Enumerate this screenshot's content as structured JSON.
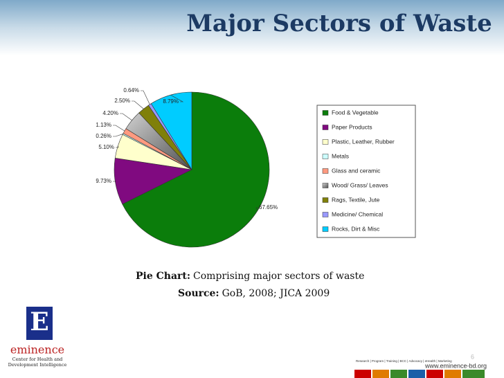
{
  "chart_data": {
    "type": "pie",
    "title": "Major Sectors of Waste",
    "categories": [
      "Food & Vegetable",
      "Paper Products",
      "Plastic, Leather, Rubber",
      "Metals",
      "Glass and ceramic",
      "Wood/ Grass/ Leaves",
      "Rags, Textile, Jute",
      "Medicine/ Chemical",
      "Rocks, Dirt & Misc"
    ],
    "values": [
      67.65,
      9.73,
      5.1,
      0.26,
      1.13,
      4.2,
      2.5,
      0.64,
      8.79
    ],
    "value_labels": [
      "67.65%",
      "9.73%",
      "5.10%",
      "0.26%",
      "1.13%",
      "4.20%",
      "2.50%",
      "0.64%",
      "8.79%"
    ],
    "colors": [
      "#0b7d0b",
      "#800a80",
      "#ffffcc",
      "#ccffff",
      "#ff9a80",
      "#858585",
      "#80800a",
      "#9999ff",
      "#00ccff"
    ],
    "legend": "right"
  },
  "slide": {
    "caption_label": "Pie Chart:",
    "caption_text": "Comprising major sectors of waste",
    "source_label": "Source:",
    "source_text": "GoB, 2008; JICA 2009",
    "logo_letter": "E",
    "logo_name": "eminence",
    "logo_sub1": "Center for Health and",
    "logo_sub2": "Development Intelligence",
    "footer_tags": "Research | Program | Training | BCC | Advocacy | eHealth | Marketing",
    "footer_url": "www.eminence-bd.org",
    "page_number": "6"
  }
}
